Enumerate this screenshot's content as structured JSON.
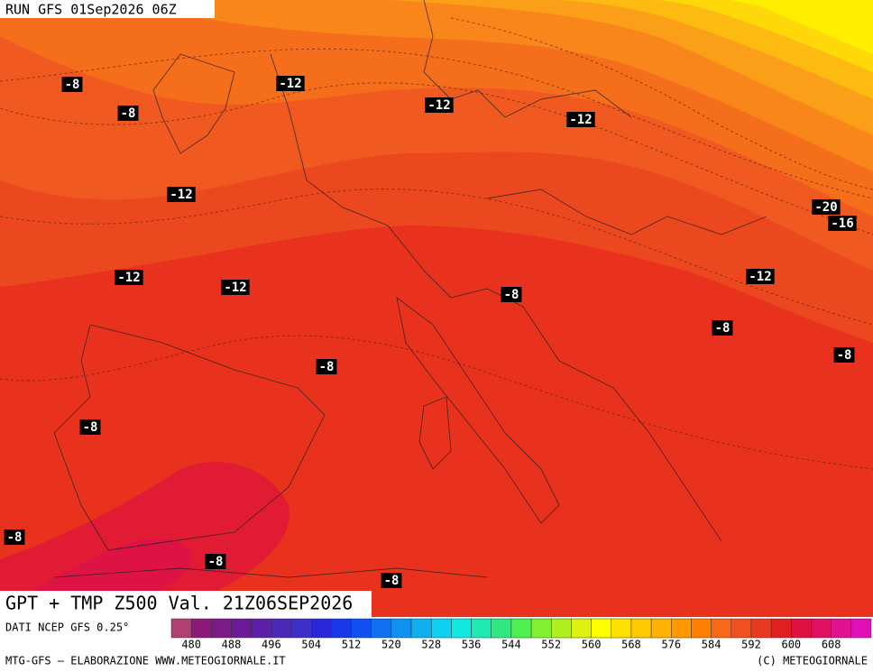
{
  "header": {
    "run": "RUN GFS 01Sep2026 06Z"
  },
  "title": "GPT + TMP Z500 Val. 21Z06SEP2026",
  "source": "DATI NCEP GFS 0.25°",
  "footer": {
    "left": "MTG-GFS — ELABORAZIONE WWW.METEOGIORNALE.IT",
    "right": "(C) METEOGIORNALE"
  },
  "isotherm_labels": [
    "-8",
    "-12",
    "-12",
    "-8",
    "-12",
    "-12",
    "-20",
    "-16",
    "-12",
    "-12",
    "-12",
    "-8",
    "-8",
    "-8",
    "-8",
    "-8",
    "-8",
    "-8",
    "-8"
  ],
  "legend": {
    "ticks": [
      480,
      488,
      496,
      504,
      512,
      520,
      528,
      536,
      544,
      552,
      560,
      568,
      576,
      584,
      592,
      600,
      608
    ],
    "colors": [
      "#b04070",
      "#8c1a78",
      "#7c1a88",
      "#6c1a98",
      "#5c20a8",
      "#4c28b8",
      "#3c30c8",
      "#2828d8",
      "#1838e8",
      "#1050f0",
      "#1070f0",
      "#1090f0",
      "#10b0f0",
      "#10d0f0",
      "#10e8e0",
      "#20e8b0",
      "#30e880",
      "#50f050",
      "#80f030",
      "#b0f020",
      "#e0f010",
      "#ffff00",
      "#ffe000",
      "#ffc800",
      "#ffb000",
      "#ff9800",
      "#ff8000",
      "#f86818",
      "#f05020",
      "#e83a20",
      "#e02020",
      "#e01040",
      "#e01060",
      "#e01090",
      "#e010b8"
    ]
  }
}
